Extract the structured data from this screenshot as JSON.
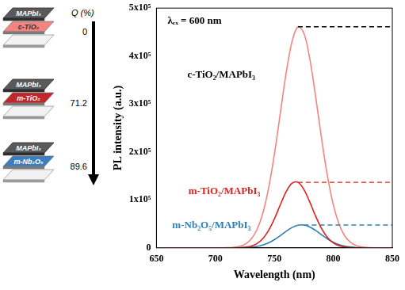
{
  "chart_data": {
    "type": "line",
    "x_label": "Wavelength (nm)",
    "y_label": "PL intensity (a.u.)",
    "annotations": [
      "λₑₓ = 600 nm"
    ],
    "xlim": [
      650,
      850
    ],
    "xticks": [
      650,
      700,
      750,
      800,
      850
    ],
    "ylim": [
      0,
      500000
    ],
    "yticks": [
      0,
      {
        "value": 100000,
        "label": "1x10⁵"
      },
      {
        "value": 200000,
        "label": "2x10⁵"
      },
      {
        "value": 300000,
        "label": "3x10⁵"
      },
      {
        "value": 400000,
        "label": "4x10⁵"
      },
      {
        "value": 500000,
        "label": "5x10⁵"
      }
    ],
    "grid": false,
    "x": [
      650,
      655,
      660,
      665,
      670,
      675,
      680,
      685,
      690,
      695,
      700,
      705,
      710,
      715,
      720,
      725,
      730,
      735,
      740,
      745,
      750,
      755,
      760,
      765,
      770,
      775,
      780,
      785,
      790,
      795,
      800,
      805,
      810,
      815,
      820,
      825,
      830,
      835,
      840,
      845,
      850
    ],
    "series": [
      {
        "name": "c-TiO₂/MAPbI₃",
        "color": "#f4847f",
        "values": [
          0,
          0,
          0,
          0,
          0,
          0,
          0,
          0,
          0,
          0,
          0,
          90,
          320,
          1020,
          2870,
          7400,
          17300,
          36800,
          70700,
          123400,
          195300,
          280200,
          364900,
          430600,
          461100,
          447800,
          394500,
          315100,
          228200,
          150000,
          89500,
          48400,
          23600,
          10500,
          4250,
          1500,
          500,
          150,
          0,
          0,
          0
        ]
      },
      {
        "name": "m-TiO₂/MAPbI₃",
        "color": "#e0201b",
        "values": [
          0,
          0,
          0,
          0,
          0,
          0,
          0,
          0,
          0,
          0,
          0,
          0,
          0,
          0,
          400,
          1230,
          3480,
          8560,
          18700,
          35800,
          60400,
          89700,
          117200,
          134900,
          136600,
          121800,
          95600,
          66000,
          40200,
          21500,
          10100,
          4200,
          1520,
          500,
          150,
          0,
          0,
          0,
          0,
          0,
          0
        ]
      },
      {
        "name": "m-Nb₂O₅/MAPbI₃",
        "color": "#2c7fb8",
        "values": [
          0,
          0,
          0,
          0,
          0,
          0,
          0,
          0,
          0,
          0,
          0,
          0,
          0,
          0,
          200,
          500,
          1300,
          2860,
          5710,
          10400,
          17100,
          25500,
          34500,
          42400,
          47200,
          47600,
          43600,
          36200,
          27300,
          18700,
          11600,
          6500,
          3300,
          1500,
          600,
          250,
          0,
          0,
          0,
          0,
          0
        ]
      }
    ]
  },
  "schematic": {
    "axis_label": "Q (%)",
    "stacks": [
      {
        "top": "MAPbI₃",
        "layer": "c-TiO₂",
        "q": "0"
      },
      {
        "top": "MAPbI₃",
        "layer": "m-TiO₂",
        "q": "71.2"
      },
      {
        "top": "MAPbI₃",
        "layer": "m-Nb₂O₅",
        "q": "89.6"
      }
    ]
  }
}
